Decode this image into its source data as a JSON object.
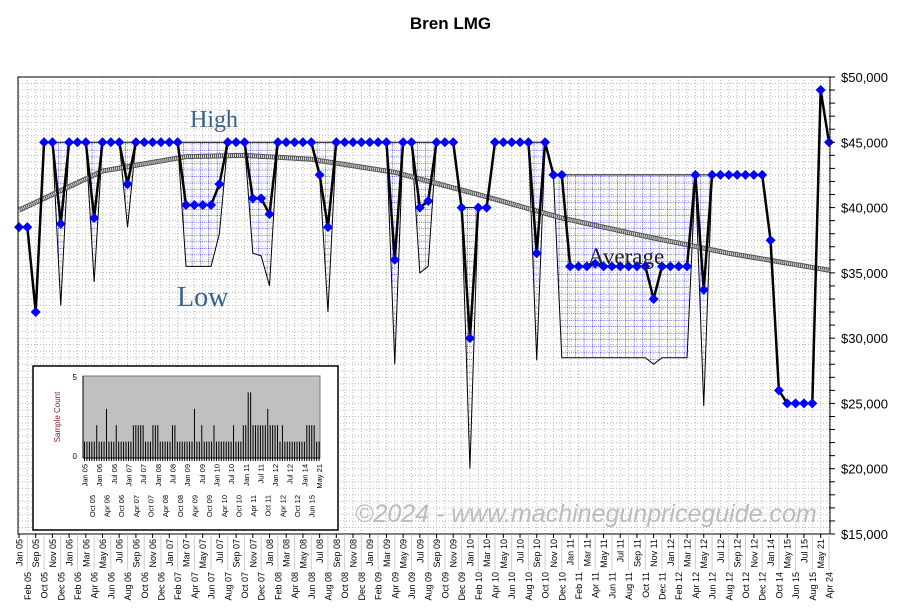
{
  "chart_data": {
    "type": "line",
    "title": "Bren LMG",
    "xlabel": "",
    "ylabel": "",
    "ylim": [
      15000,
      50000
    ],
    "y_ticks": [
      "$50,000",
      "$45,000",
      "$40,000",
      "$35,000",
      "$30,000",
      "$25,000",
      "$20,000",
      "$15,000"
    ],
    "y_tick_values": [
      50000,
      45000,
      40000,
      35000,
      30000,
      25000,
      20000,
      15000
    ],
    "grid": true,
    "categories": [
      "Jan 05",
      "Feb 05",
      "Sep 05",
      "Oct 05",
      "Nov 05",
      "Dec 05",
      "Jan 06",
      "Feb 06",
      "Mar 06",
      "Apr 06",
      "May 06",
      "Jun 06",
      "Jul 06",
      "Aug 06",
      "Sep 06",
      "Oct 06",
      "Nov 06",
      "Dec 06",
      "Jan 07",
      "Feb 07",
      "Mar 07",
      "Apr 07",
      "May 07",
      "Jun 07",
      "Jul 07",
      "Aug 07",
      "Sep 07",
      "Oct 07",
      "Nov 07",
      "Dec 07",
      "Jan 08",
      "Feb 08",
      "Mar 08",
      "Apr 08",
      "May 08",
      "Jun 08",
      "Jul 08",
      "Aug 08",
      "Sep 08",
      "Oct 08",
      "Nov 08",
      "Dec 08",
      "Jan 09",
      "Feb 09",
      "Mar 09",
      "Apr 09",
      "May 09",
      "Jun 09",
      "Jul 09",
      "Aug 09",
      "Sep 09",
      "Oct 09",
      "Nov 09",
      "Dec 09",
      "Jan 10",
      "Feb 10",
      "Mar 10",
      "Apr 10",
      "May 10",
      "Jun 10",
      "Jul 10",
      "Aug 10",
      "Sep 10",
      "Oct 10",
      "Nov 10",
      "Dec 10",
      "Jan 11",
      "Feb 11",
      "Mar 11",
      "Apr 11",
      "May 11",
      "Jun 11",
      "Jul 11",
      "Aug 11",
      "Sep 11",
      "Oct 11",
      "Nov 11",
      "Dec 11",
      "Jan 12",
      "Feb 12",
      "Mar 12",
      "Apr 12",
      "May 12",
      "Jun 12",
      "Jul 12",
      "Aug 12",
      "Sep 12",
      "Oct 12",
      "Nov 12",
      "Dec 12",
      "Jan 14",
      "Oct 14",
      "May 15",
      "Jun 15",
      "Jul 15",
      "Aug 15",
      "May 21",
      "Apr 24"
    ],
    "series": [
      {
        "name": "Price",
        "values": [
          38500,
          38500,
          32000,
          45000,
          45000,
          38750,
          45000,
          45000,
          45000,
          39200,
          45000,
          45000,
          45000,
          41800,
          45000,
          45000,
          45000,
          45000,
          45000,
          45000,
          40200,
          40200,
          40200,
          40200,
          41800,
          45000,
          45000,
          45000,
          40700,
          40700,
          39500,
          45000,
          45000,
          45000,
          45000,
          45000,
          42500,
          38500,
          45000,
          45000,
          45000,
          45000,
          45000,
          45000,
          45000,
          36000,
          45000,
          45000,
          40000,
          40500,
          45000,
          45000,
          45000,
          40000,
          30000,
          40000,
          40000,
          45000,
          45000,
          45000,
          45000,
          45000,
          36500,
          45000,
          42500,
          42500,
          35500,
          35500,
          35500,
          35700,
          35500,
          35500,
          35500,
          35500,
          35500,
          35500,
          33000,
          35500,
          35500,
          35500,
          35500,
          42500,
          33700,
          42500,
          42500,
          42500,
          42500,
          42500,
          42500,
          42500,
          37500,
          26000,
          25000,
          25000,
          25000,
          25000,
          49000,
          45000
        ]
      },
      {
        "name": "High",
        "values": [
          38500,
          38500,
          32000,
          45000,
          45000,
          45000,
          45000,
          45000,
          45000,
          45000,
          45000,
          45000,
          45000,
          45000,
          45000,
          45000,
          45000,
          45000,
          45000,
          45000,
          45000,
          45000,
          45000,
          45000,
          45000,
          45000,
          45000,
          45000,
          45000,
          45000,
          45000,
          45000,
          45000,
          45000,
          45000,
          45000,
          45000,
          45000,
          45000,
          45000,
          45000,
          45000,
          45000,
          45000,
          45000,
          45000,
          45000,
          45000,
          45000,
          45000,
          45000,
          45000,
          45000,
          40000,
          40000,
          40000,
          40000,
          45000,
          45000,
          45000,
          45000,
          45000,
          45000,
          45000,
          42500,
          42500,
          42500,
          42500,
          42500,
          42500,
          42500,
          42500,
          42500,
          42500,
          42500,
          42500,
          42500,
          42500,
          42500,
          42500,
          42500,
          42500,
          42500,
          42500,
          42500,
          42500,
          42500,
          42500,
          42500,
          42500,
          37500,
          26000,
          25000,
          25000,
          25000,
          25000,
          49000,
          45000
        ]
      },
      {
        "name": "Low",
        "values": [
          38500,
          38500,
          32000,
          45000,
          45000,
          32500,
          45000,
          45000,
          45000,
          34300,
          45000,
          45000,
          45000,
          38500,
          45000,
          45000,
          45000,
          45000,
          45000,
          45000,
          35500,
          35500,
          35500,
          35500,
          38000,
          45000,
          45000,
          45000,
          36500,
          36300,
          34000,
          45000,
          45000,
          45000,
          45000,
          45000,
          42500,
          32000,
          45000,
          45000,
          45000,
          45000,
          45000,
          45000,
          45000,
          28000,
          45000,
          45000,
          35000,
          35500,
          45000,
          45000,
          45000,
          40000,
          20000,
          40000,
          40000,
          45000,
          45000,
          45000,
          45000,
          45000,
          28300,
          45000,
          42500,
          28500,
          28500,
          28500,
          28500,
          28500,
          28500,
          28500,
          28500,
          28500,
          28500,
          28500,
          28000,
          28500,
          28500,
          28500,
          28500,
          42500,
          24800,
          42500,
          42500,
          42500,
          42500,
          42500,
          42500,
          42500,
          37500,
          26000,
          25000,
          25000,
          25000,
          25000,
          49000,
          45000
        ]
      },
      {
        "name": "Average",
        "anchors_index": [
          0,
          10,
          20,
          27,
          35,
          45,
          55,
          65,
          75,
          85,
          97
        ],
        "anchors_value": [
          39800,
          42800,
          43900,
          44000,
          43700,
          42700,
          41000,
          39200,
          37800,
          36500,
          35200
        ]
      }
    ],
    "annotations": {
      "high": "High",
      "low": "Low",
      "average": "Average"
    },
    "inset": {
      "type": "bar",
      "ylabel": "Sample Count",
      "ylim": [
        0,
        5
      ],
      "y_ticks": [
        "5",
        "0"
      ],
      "tick_labels": [
        "Jan 05",
        "Oct 05",
        "Jan 06",
        "Apr 06",
        "Jul 06",
        "Oct 06",
        "Jan 07",
        "Apr 07",
        "Jul 07",
        "Oct 07",
        "Jan 08",
        "Apr 08",
        "Jul 08",
        "Oct 08",
        "Jan 09",
        "Apr 09",
        "Jul 09",
        "Oct 09",
        "Jan 10",
        "Apr 10",
        "Jul 10",
        "Oct 10",
        "Jan 11",
        "Apr 11",
        "Jul 11",
        "Oct 11",
        "Jan 12",
        "Apr 12",
        "Jul 12",
        "Oct 12",
        "Jan 14",
        "Jun 15",
        "May 21"
      ],
      "values": [
        1,
        1,
        1,
        1,
        1,
        2,
        1,
        1,
        1,
        3,
        1,
        1,
        1,
        2,
        1,
        1,
        1,
        1,
        1,
        1,
        2,
        2,
        2,
        2,
        2,
        1,
        1,
        1,
        2,
        2,
        2,
        1,
        1,
        1,
        1,
        1,
        2,
        2,
        1,
        1,
        1,
        1,
        1,
        1,
        1,
        3,
        1,
        1,
        2,
        1,
        1,
        1,
        1,
        2,
        1,
        1,
        1,
        1,
        1,
        1,
        1,
        2,
        1,
        1,
        1,
        2,
        2,
        4,
        4,
        2,
        2,
        2,
        2,
        2,
        2,
        3,
        2,
        2,
        2,
        2,
        1,
        2,
        1,
        1,
        1,
        1,
        1,
        1,
        1,
        1,
        1,
        2,
        2,
        2,
        2,
        1,
        1
      ]
    },
    "watermark": "©2024 - www.machinegunpriceguide.com",
    "colors": {
      "marker": "#0000ff",
      "line": "#000000",
      "fill_grid": "#0000ff",
      "annotation": "#2e5f8f",
      "inset_bg": "#c0c0c0"
    }
  }
}
